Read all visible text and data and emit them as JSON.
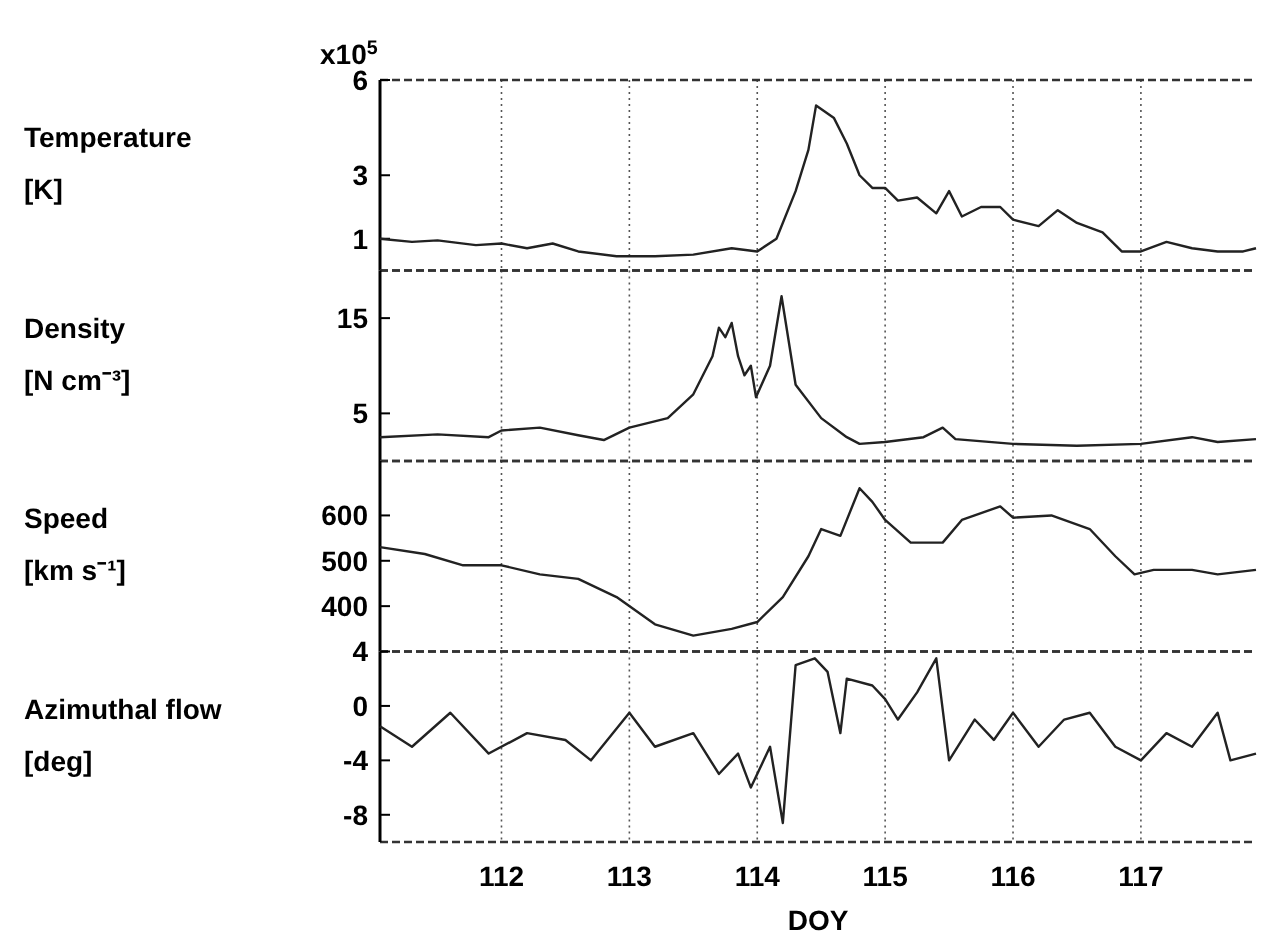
{
  "chart_data": [
    {
      "type": "line",
      "ylabel": "Temperature [K]",
      "annotations": [
        "x10$^{5}$"
      ],
      "xlim": [
        111.05,
        117.9
      ],
      "xticks": [
        112,
        113,
        114,
        115,
        116,
        117
      ],
      "ylim": [
        0,
        6
      ],
      "yticks": [
        1,
        3,
        6
      ],
      "grid": "x",
      "tick_labels": "y",
      "series": [
        {
          "color": "#222222",
          "x": [
            111.05,
            111.3,
            111.5,
            111.8,
            112,
            112.2,
            112.4,
            112.6,
            112.9,
            113.2,
            113.5,
            113.8,
            114.0,
            114.15,
            114.3,
            114.4,
            114.46,
            114.6,
            114.7,
            114.8,
            114.9,
            115,
            115.1,
            115.25,
            115.4,
            115.5,
            115.6,
            115.75,
            115.9,
            116,
            116.2,
            116.35,
            116.5,
            116.7,
            116.85,
            117,
            117.2,
            117.4,
            117.6,
            117.8,
            117.9
          ],
          "values": [
            1.0,
            0.9,
            0.95,
            0.8,
            0.85,
            0.7,
            0.85,
            0.6,
            0.45,
            0.45,
            0.5,
            0.7,
            0.6,
            1.0,
            2.5,
            3.8,
            5.2,
            4.8,
            4.0,
            3.0,
            2.6,
            2.6,
            2.2,
            2.3,
            1.8,
            2.5,
            1.7,
            2.0,
            2.0,
            1.6,
            1.4,
            1.9,
            1.5,
            1.2,
            0.6,
            0.6,
            0.9,
            0.7,
            0.6,
            0.6,
            0.7
          ]
        }
      ]
    },
    {
      "type": "line",
      "ylabel": "Density [N cm⁻³]",
      "xlim": [
        111.05,
        117.9
      ],
      "xticks": [
        112,
        113,
        114,
        115,
        116,
        117
      ],
      "ylim": [
        0,
        20
      ],
      "yticks": [
        5,
        15
      ],
      "grid": "x",
      "tick_labels": "y",
      "series": [
        {
          "color": "#222222",
          "x": [
            111.05,
            111.5,
            111.9,
            112,
            112.3,
            112.6,
            112.8,
            113,
            113.3,
            113.5,
            113.65,
            113.7,
            113.75,
            113.8,
            113.85,
            113.9,
            113.95,
            113.99,
            114.1,
            114.19,
            114.3,
            114.5,
            114.7,
            114.8,
            115,
            115.3,
            115.45,
            115.55,
            116,
            116.5,
            117,
            117.4,
            117.6,
            117.9
          ],
          "values": [
            2.5,
            2.8,
            2.5,
            3.2,
            3.5,
            2.7,
            2.2,
            3.5,
            4.5,
            7,
            11,
            14,
            13,
            14.5,
            11,
            9,
            10,
            6.7,
            10,
            17.3,
            8,
            4.5,
            2.5,
            1.8,
            2.0,
            2.5,
            3.5,
            2.3,
            1.8,
            1.6,
            1.8,
            2.5,
            2.0,
            2.3
          ]
        }
      ]
    },
    {
      "type": "line",
      "ylabel": "Speed [km s⁻¹]",
      "xlim": [
        111.05,
        117.9
      ],
      "xticks": [
        112,
        113,
        114,
        115,
        116,
        117
      ],
      "ylim": [
        300,
        720
      ],
      "yticks": [
        400,
        500,
        600
      ],
      "grid": "x",
      "tick_labels": "y",
      "series": [
        {
          "color": "#222222",
          "x": [
            111.05,
            111.4,
            111.7,
            112,
            112.3,
            112.6,
            112.9,
            113.2,
            113.5,
            113.8,
            114,
            114.2,
            114.4,
            114.5,
            114.65,
            114.8,
            114.9,
            115,
            115.2,
            115.45,
            115.6,
            115.9,
            116,
            116.3,
            116.6,
            116.8,
            116.95,
            117.1,
            117.4,
            117.6,
            117.9
          ],
          "values": [
            530,
            515,
            490,
            490,
            470,
            460,
            420,
            360,
            335,
            350,
            365,
            420,
            510,
            570,
            555,
            660,
            630,
            590,
            540,
            540,
            590,
            620,
            595,
            600,
            570,
            510,
            470,
            480,
            480,
            470,
            480
          ]
        }
      ]
    },
    {
      "type": "line",
      "ylabel": "Azimuthal flow [deg]",
      "xlabel": "DOY",
      "xlim": [
        111.05,
        117.9
      ],
      "xticks": [
        112,
        113,
        114,
        115,
        116,
        117
      ],
      "ylim": [
        -10,
        4
      ],
      "yticks": [
        -8,
        -4,
        0,
        4
      ],
      "grid": "x",
      "series": [
        {
          "color": "#222222",
          "x": [
            111.05,
            111.3,
            111.6,
            111.9,
            112.2,
            112.5,
            112.7,
            113,
            113.2,
            113.5,
            113.7,
            113.85,
            113.95,
            114.1,
            114.2,
            114.3,
            114.45,
            114.55,
            114.65,
            114.7,
            114.9,
            115.0,
            115.1,
            115.25,
            115.4,
            115.5,
            115.7,
            115.85,
            116,
            116.2,
            116.4,
            116.6,
            116.8,
            117,
            117.2,
            117.4,
            117.6,
            117.7,
            117.9
          ],
          "values": [
            -1.5,
            -3,
            -0.5,
            -3.5,
            -2,
            -2.5,
            -4,
            -0.5,
            -3,
            -2,
            -5,
            -3.5,
            -6,
            -3,
            -8.6,
            3,
            3.5,
            2.5,
            -2,
            2,
            1.5,
            0.5,
            -1,
            1,
            3.5,
            -4,
            -1,
            -2.5,
            -0.5,
            -3,
            -1,
            -0.5,
            -3,
            -4,
            -2,
            -3,
            -0.5,
            -4,
            -3.5
          ]
        }
      ]
    }
  ]
}
